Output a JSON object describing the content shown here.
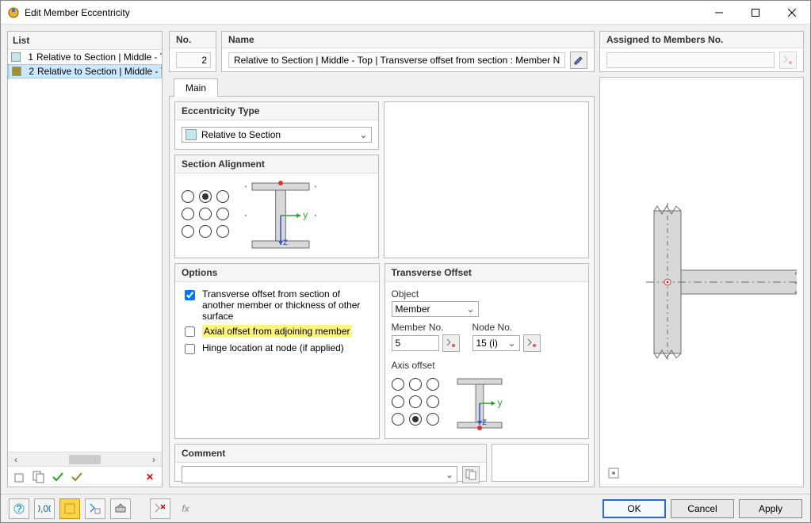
{
  "window": {
    "title": "Edit Member Eccentricity"
  },
  "list": {
    "header": "List",
    "items": [
      {
        "index": 1,
        "swatch": "#bfe8ef",
        "label": "Relative to Section | Middle - To",
        "selected": false
      },
      {
        "index": 2,
        "swatch": "#a38e2b",
        "label": "Relative to Section | Middle - To",
        "selected": true
      }
    ]
  },
  "top": {
    "no": {
      "header": "No.",
      "value": "2"
    },
    "name": {
      "header": "Name",
      "value": "Relative to Section | Middle - Top | Transverse offset from section : Member No"
    },
    "assigned": {
      "header": "Assigned to Members No.",
      "value": ""
    }
  },
  "tabs": {
    "main": "Main"
  },
  "ecc_type": {
    "header": "Eccentricity Type",
    "swatch": "#bfe8ef",
    "value": "Relative to Section"
  },
  "section_alignment": {
    "header": "Section Alignment",
    "grid": {
      "rows": 3,
      "cols": 3,
      "selected": [
        0,
        1
      ]
    },
    "beam": {
      "flange_color": "#d8d8d8",
      "web_color": "#d8d8d8",
      "outline": "#6e6e6e",
      "y_axis_color": "#2aa02a",
      "z_axis_color": "#2d4fd6",
      "node_color": "#e03030"
    }
  },
  "options": {
    "header": "Options",
    "opt1": {
      "checked": true,
      "label": "Transverse offset from section of another member or thickness of other surface"
    },
    "opt2": {
      "checked": false,
      "label": "Axial offset from adjoining member",
      "highlight": true
    },
    "opt3": {
      "checked": false,
      "label": "Hinge location at node (if applied)"
    }
  },
  "transverse": {
    "header": "Transverse Offset",
    "object": {
      "label": "Object",
      "value": "Member"
    },
    "member_no": {
      "label": "Member No.",
      "value": "5"
    },
    "node_no": {
      "label": "Node No.",
      "value": "15 (i)"
    },
    "axis_offset": {
      "label": "Axis offset",
      "grid": {
        "rows": 3,
        "cols": 3,
        "selected": [
          2,
          1
        ]
      }
    }
  },
  "comment": {
    "header": "Comment",
    "value": ""
  },
  "preview": {
    "bg": "#ffffff",
    "col_fill": "#d8d8d8",
    "beam_fill": "#d8d8d8",
    "outline": "#6e6e6e",
    "dash": "#6e6e6e",
    "node": "#e03030"
  },
  "buttons": {
    "ok": "OK",
    "cancel": "Cancel",
    "apply": "Apply"
  },
  "bottom_icons": {
    "help": "help-icon",
    "units": "units-icon",
    "color": "color-icon",
    "pick": "pick-icon",
    "view": "view-icon",
    "clear": "clear-icon",
    "fx": "fx-icon"
  }
}
